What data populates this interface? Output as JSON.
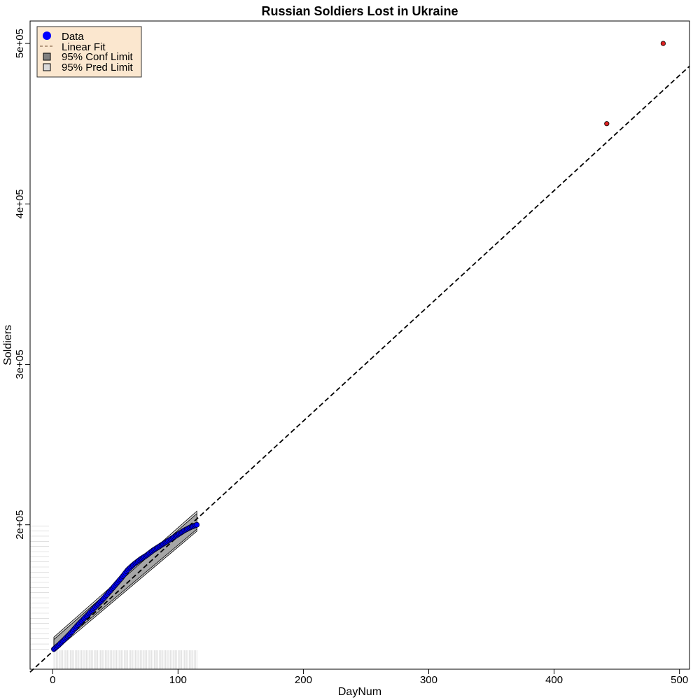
{
  "chart_data": {
    "type": "scatter",
    "title": "Russian Soldiers Lost in Ukraine",
    "xlabel": "DayNum",
    "ylabel": "Soldiers",
    "xlim": [
      -18,
      508
    ],
    "ylim": [
      110000,
      514000
    ],
    "x_ticks": [
      0,
      100,
      200,
      300,
      400,
      500
    ],
    "x_tick_labels": [
      "0",
      "100",
      "200",
      "300",
      "400",
      "500"
    ],
    "y_ticks": [
      200000,
      300000,
      400000,
      500000
    ],
    "y_tick_labels": [
      "2e+05",
      "3e+05",
      "4e+05",
      "5e+05"
    ],
    "grid": false,
    "legend": {
      "position": "top-left",
      "background": "#fbe7cf",
      "entries": [
        {
          "label": "Data",
          "symbol": "circle",
          "color": "#0000ff"
        },
        {
          "label": "Linear Fit",
          "symbol": "dashed-line",
          "color": "#8b6b4f"
        },
        {
          "label": "95% Conf Limit",
          "symbol": "box",
          "color": "#808080"
        },
        {
          "label": "95% Pred Limit",
          "symbol": "box",
          "color": "#d9d9d9"
        }
      ]
    },
    "observed_series": {
      "name": "Data",
      "color": "#0000ff",
      "points": [
        [
          1,
          122500
        ],
        [
          5,
          125200
        ],
        [
          10,
          129000
        ],
        [
          15,
          133000
        ],
        [
          20,
          137500
        ],
        [
          25,
          141500
        ],
        [
          30,
          145500
        ],
        [
          35,
          149500
        ],
        [
          40,
          153500
        ],
        [
          45,
          158000
        ],
        [
          50,
          162500
        ],
        [
          55,
          167000
        ],
        [
          60,
          172000
        ],
        [
          65,
          175500
        ],
        [
          70,
          178500
        ],
        [
          75,
          181000
        ],
        [
          80,
          184000
        ],
        [
          85,
          186500
        ],
        [
          90,
          189000
        ],
        [
          95,
          191500
        ],
        [
          100,
          194000
        ],
        [
          105,
          196500
        ],
        [
          110,
          198500
        ],
        [
          115,
          200000
        ]
      ]
    },
    "predicted_points": {
      "color": "#dd2222",
      "points": [
        [
          442,
          450000
        ],
        [
          487,
          500000
        ]
      ]
    },
    "linear_fit": {
      "intercept": 121100,
      "slope": 718,
      "x_range": [
        -18,
        508
      ],
      "color": "#000000"
    },
    "confidence_band": {
      "color": "#a6a6a6",
      "upper": [
        [
          1,
          128500
        ],
        [
          115,
          207000
        ]
      ],
      "lower": [
        [
          1,
          122300
        ],
        [
          115,
          197200
        ]
      ]
    },
    "prediction_band": {
      "color": "#d9d9d9",
      "upper": [
        [
          1,
          130000
        ],
        [
          115,
          208500
        ]
      ],
      "lower": [
        [
          1,
          121000
        ],
        [
          115,
          196000
        ]
      ]
    },
    "x_rug_range": [
      1,
      115
    ],
    "y_rug_range": [
      122500,
      200000
    ]
  }
}
